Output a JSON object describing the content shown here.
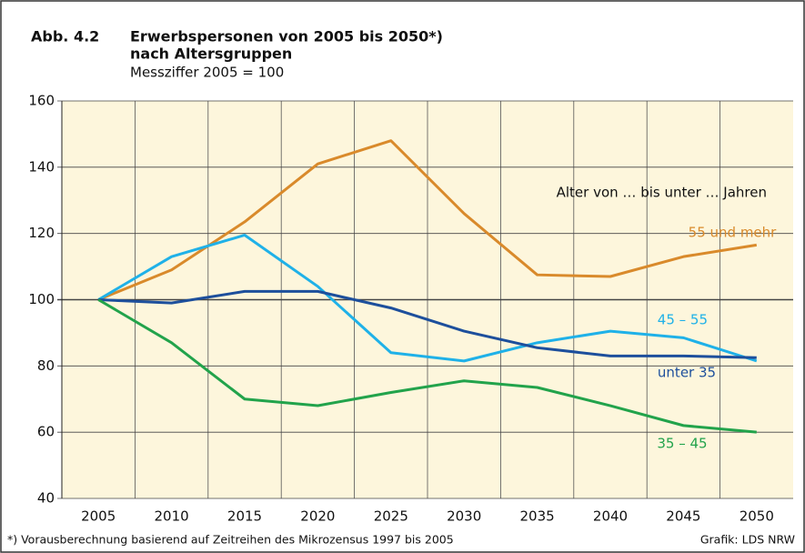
{
  "chart_data": {
    "type": "line",
    "title_label": "Abb. 4.2",
    "title": "Erwerbspersonen von 2005 bis 2050*)",
    "title_line2": "nach Altersgruppen",
    "subtitle": "Messziffer 2005 = 100",
    "annotation": "Alter von … bis unter … Jahren",
    "footnote": "*) Vorausberechnung basierend auf Zeitreihen des Mikrozensus 1997 bis 2005",
    "source": "Grafik: LDS NRW",
    "categories": [
      "2005",
      "2010",
      "2015",
      "2020",
      "2025",
      "2030",
      "2035",
      "2040",
      "2045",
      "2050"
    ],
    "series": [
      {
        "name": "55 und mehr",
        "color": "#d98a2b",
        "values": [
          100,
          109,
          123.5,
          141,
          148,
          126,
          107.5,
          107,
          113,
          116.5
        ]
      },
      {
        "name": "45 – 55",
        "color": "#1fb1e8",
        "values": [
          100,
          113,
          119.5,
          104,
          84,
          81.5,
          87,
          90.5,
          88.5,
          81.5
        ]
      },
      {
        "name": "unter 35",
        "color": "#1d4f9c",
        "values": [
          100,
          99,
          102.5,
          102.5,
          97.5,
          90.5,
          85.5,
          83,
          83,
          82.5
        ]
      },
      {
        "name": "35 – 45",
        "color": "#22a34b",
        "values": [
          100,
          87,
          70,
          68,
          72,
          75.5,
          73.5,
          68,
          62,
          60
        ]
      }
    ],
    "ylim": [
      40,
      160
    ],
    "yticks": [
      40,
      60,
      80,
      100,
      120,
      140,
      160
    ],
    "grid": true,
    "background": "#fdf6dc"
  }
}
